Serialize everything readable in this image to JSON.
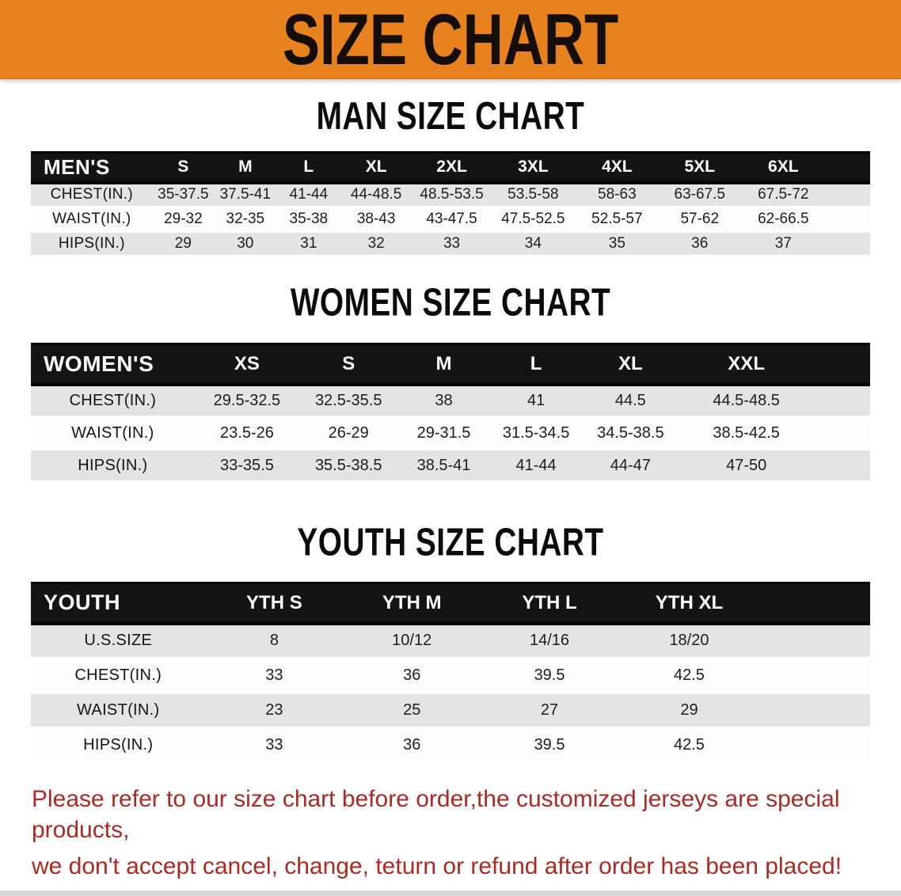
{
  "banner": {
    "title": "SIZE CHART",
    "bg_color": "#e8821f",
    "text_color": "#150e07"
  },
  "chart_data": [
    {
      "type": "table",
      "title": "MAN SIZE CHART",
      "corner_label": "MEN'S",
      "columns": [
        "S",
        "M",
        "L",
        "XL",
        "2XL",
        "3XL",
        "4XL",
        "5XL",
        "6XL"
      ],
      "rows": [
        {
          "label": "CHEST(IN.)",
          "values": [
            "35-37.5",
            "37.5-41",
            "41-44",
            "44-48.5",
            "48.5-53.5",
            "53.5-58",
            "58-63",
            "63-67.5",
            "67.5-72"
          ]
        },
        {
          "label": "WAIST(IN.)",
          "values": [
            "29-32",
            "32-35",
            "35-38",
            "38-43",
            "43-47.5",
            "47.5-52.5",
            "52.5-57",
            "57-62",
            "62-66.5"
          ]
        },
        {
          "label": "HIPS(IN.)",
          "values": [
            "29",
            "30",
            "31",
            "32",
            "33",
            "34",
            "35",
            "36",
            "37"
          ]
        }
      ],
      "header_bg": "#161412",
      "stripe_color": "#e4e4e6"
    },
    {
      "type": "table",
      "title": "WOMEN SIZE CHART",
      "corner_label": "WOMEN'S",
      "columns": [
        "XS",
        "S",
        "M",
        "L",
        "XL",
        "XXL"
      ],
      "rows": [
        {
          "label": "CHEST(IN.)",
          "values": [
            "29.5-32.5",
            "32.5-35.5",
            "38",
            "41",
            "44.5",
            "44.5-48.5"
          ]
        },
        {
          "label": "WAIST(IN.)",
          "values": [
            "23.5-26",
            "26-29",
            "29-31.5",
            "31.5-34.5",
            "34.5-38.5",
            "38.5-42.5"
          ]
        },
        {
          "label": "HIPS(IN.)",
          "values": [
            "33-35.5",
            "35.5-38.5",
            "38.5-41",
            "41-44",
            "44-47",
            "47-50"
          ]
        }
      ],
      "header_bg": "#161412",
      "stripe_color": "#e4e4e6"
    },
    {
      "type": "table",
      "title": "YOUTH SIZE CHART",
      "corner_label": "YOUTH",
      "columns": [
        "YTH S",
        "YTH M",
        "YTH L",
        "YTH XL"
      ],
      "rows": [
        {
          "label": "U.S.SIZE",
          "values": [
            "8",
            "10/12",
            "14/16",
            "18/20"
          ]
        },
        {
          "label": "CHEST(IN.)",
          "values": [
            "33",
            "36",
            "39.5",
            "42.5"
          ]
        },
        {
          "label": "WAIST(IN.)",
          "values": [
            "23",
            "25",
            "27",
            "29"
          ]
        },
        {
          "label": "HIPS(IN.)",
          "values": [
            "33",
            "36",
            "39.5",
            "42.5"
          ]
        }
      ],
      "header_bg": "#161412",
      "stripe_color": "#e4e4e6"
    }
  ],
  "footer": {
    "line1": "Please refer to our size chart before order,the customized jerseys are special products,",
    "line2": "we don't accept cancel, change, teturn or refund after order has been placed!",
    "text_color": "#ab2a23"
  }
}
